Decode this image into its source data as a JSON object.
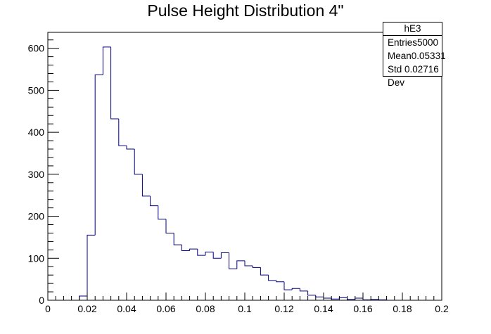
{
  "chart_data": {
    "type": "bar",
    "histogram": true,
    "title": "Pulse Height Distribution 4\"",
    "xlabel": "",
    "ylabel": "",
    "xlim": [
      0,
      0.2
    ],
    "ylim": [
      0,
      638
    ],
    "x_ticks": [
      "0",
      "0.02",
      "0.04",
      "0.06",
      "0.08",
      "0.1",
      "0.12",
      "0.14",
      "0.16",
      "0.18",
      "0.2"
    ],
    "y_ticks": [
      "0",
      "100",
      "200",
      "300",
      "400",
      "500",
      "600"
    ],
    "bin_width": 0.004,
    "bin_edges_start": 0,
    "values": [
      0,
      0,
      0,
      0,
      10,
      155,
      537,
      603,
      432,
      368,
      360,
      300,
      248,
      225,
      193,
      160,
      132,
      118,
      122,
      107,
      115,
      100,
      113,
      75,
      94,
      82,
      78,
      60,
      47,
      44,
      25,
      28,
      22,
      12,
      8,
      5,
      3,
      6,
      2,
      5,
      1,
      2,
      1,
      0,
      0,
      0,
      0,
      0,
      0,
      0
    ],
    "line_color": "#00007f",
    "grid": false,
    "legend_placement": "top-right"
  },
  "stats_box": {
    "name": "hE3",
    "rows": [
      {
        "label": "Entries",
        "value": "5000"
      },
      {
        "label": "Mean",
        "value": "0.05331"
      },
      {
        "label": "Std Dev",
        "value": "0.02716"
      }
    ]
  }
}
